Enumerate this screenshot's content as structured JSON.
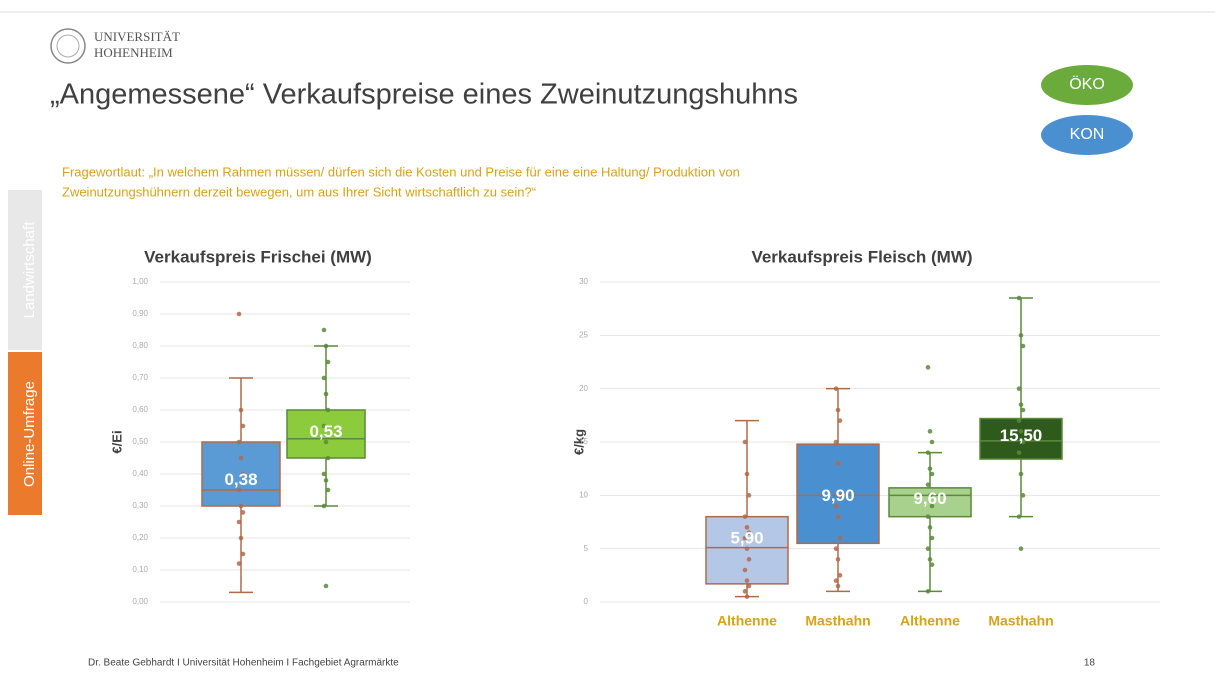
{
  "header": {
    "logo_line1": "UNIVERSITÄT",
    "logo_line2": "HOHENHEIM",
    "title": "„Angemessene“ Verkaufspreise eines Zweinutzungshuhns"
  },
  "sidebar": {
    "tab1": "Landwirtschaft",
    "tab2": "Online-Umfrage"
  },
  "legend": [
    {
      "name": "ÖKO",
      "color": "#6aab3c"
    },
    {
      "name": "KON",
      "color": "#4a90d0"
    }
  ],
  "question": {
    "line1": "Fragewortlaut: „In welchem Rahmen müssen/ dürfen sich die Kosten und Preise für eine eine Haltung/ Produktion von",
    "line2": "Zweinutzungshühnern derzeit bewegen, um aus Ihrer Sicht wirtschaftlich zu sein?“"
  },
  "chart_data": [
    {
      "type": "box",
      "title": "Verkaufspreis Frischei (MW)",
      "y_label": "€/Ei",
      "grid": true,
      "ylim": [
        0,
        1
      ],
      "yticks": [
        {
          "value": 0,
          "label": "0,00"
        },
        {
          "value": 0.1,
          "label": "0,10"
        },
        {
          "value": 0.2,
          "label": "0,20"
        },
        {
          "value": 0.3,
          "label": "0,30"
        },
        {
          "value": 0.4,
          "label": "0,40"
        },
        {
          "value": 0.5,
          "label": "0,50"
        },
        {
          "value": 0.6,
          "label": "0,60"
        },
        {
          "value": 0.7,
          "label": "0,70"
        },
        {
          "value": 0.8,
          "label": "0,80"
        },
        {
          "value": 0.9,
          "label": "0,90"
        },
        {
          "value": 1,
          "label": "1,00"
        }
      ],
      "boxes": [
        {
          "color": "#5b9bd5",
          "whisker_color": "#b06a4a",
          "whisker_low": 0.03,
          "q1": 0.3,
          "median": 0.35,
          "q3": 0.5,
          "whisker_high": 0.7,
          "mean": 0.38,
          "mean_label": "0,38",
          "points": [
            0.9,
            0.6,
            0.55,
            0.5,
            0.45,
            0.4,
            0.35,
            0.3,
            0.28,
            0.25,
            0.2,
            0.15,
            0.12
          ]
        },
        {
          "color": "#8ccc3c",
          "whisker_color": "#5a8a3a",
          "whisker_low": 0.3,
          "q1": 0.45,
          "median": 0.51,
          "q3": 0.6,
          "whisker_high": 0.8,
          "mean": 0.53,
          "mean_label": "0,53",
          "points": [
            0.85,
            0.8,
            0.75,
            0.7,
            0.65,
            0.6,
            0.55,
            0.5,
            0.45,
            0.4,
            0.38,
            0.35,
            0.3,
            0.05
          ]
        }
      ]
    },
    {
      "type": "box",
      "title": "Verkaufspreis Fleisch (MW)",
      "y_label": "€/kg",
      "grid": true,
      "ylim": [
        0,
        30
      ],
      "yticks": [
        0,
        5,
        10,
        15,
        20,
        25,
        30
      ],
      "categories": [
        "Althenne",
        "Masthahn",
        "Althenne",
        "Masthahn"
      ],
      "boxes": [
        {
          "color": "#b4c7e7",
          "whisker_color": "#b06a4a",
          "whisker_low": 0.5,
          "q1": 1.7,
          "median": 5.1,
          "q3": 8,
          "whisker_high": 17,
          "mean": 5.9,
          "mean_label": "5,90",
          "points": [
            15,
            12,
            10,
            8,
            7,
            6.5,
            6,
            5,
            4,
            3,
            2,
            1.5,
            1,
            0.5
          ]
        },
        {
          "color": "#4a90d0",
          "whisker_color": "#b06a4a",
          "whisker_low": 1,
          "q1": 5.5,
          "median": 10,
          "q3": 14.8,
          "whisker_high": 20,
          "mean": 9.9,
          "mean_label": "9,90",
          "points": [
            20,
            18,
            17,
            15,
            13,
            10,
            9,
            8,
            6,
            5,
            4,
            2.5,
            2,
            1.5
          ]
        },
        {
          "color": "#a9d18e",
          "whisker_color": "#5a8a3a",
          "whisker_low": 1,
          "q1": 8,
          "median": 10,
          "q3": 10.7,
          "whisker_high": 14,
          "mean": 9.6,
          "mean_label": "9,60",
          "points": [
            22,
            16,
            15,
            14,
            12.5,
            12,
            11,
            10,
            9,
            8,
            7,
            6,
            5,
            4,
            3.5,
            1
          ]
        },
        {
          "color": "#2e5a1c",
          "whisker_color": "#5a8a3a",
          "whisker_low": 8,
          "q1": 13.4,
          "median": 15.1,
          "q3": 17.2,
          "whisker_high": 28.5,
          "mean": 15.5,
          "mean_label": "15,50",
          "points": [
            28.5,
            25,
            24,
            20,
            18.5,
            18,
            17,
            16,
            15,
            14,
            12,
            10,
            8,
            5
          ]
        }
      ]
    }
  ],
  "footer": {
    "author": "Dr. Beate Gebhardt I Universität Hohenheim I Fachgebiet Agrarmärkte",
    "page": "18"
  }
}
